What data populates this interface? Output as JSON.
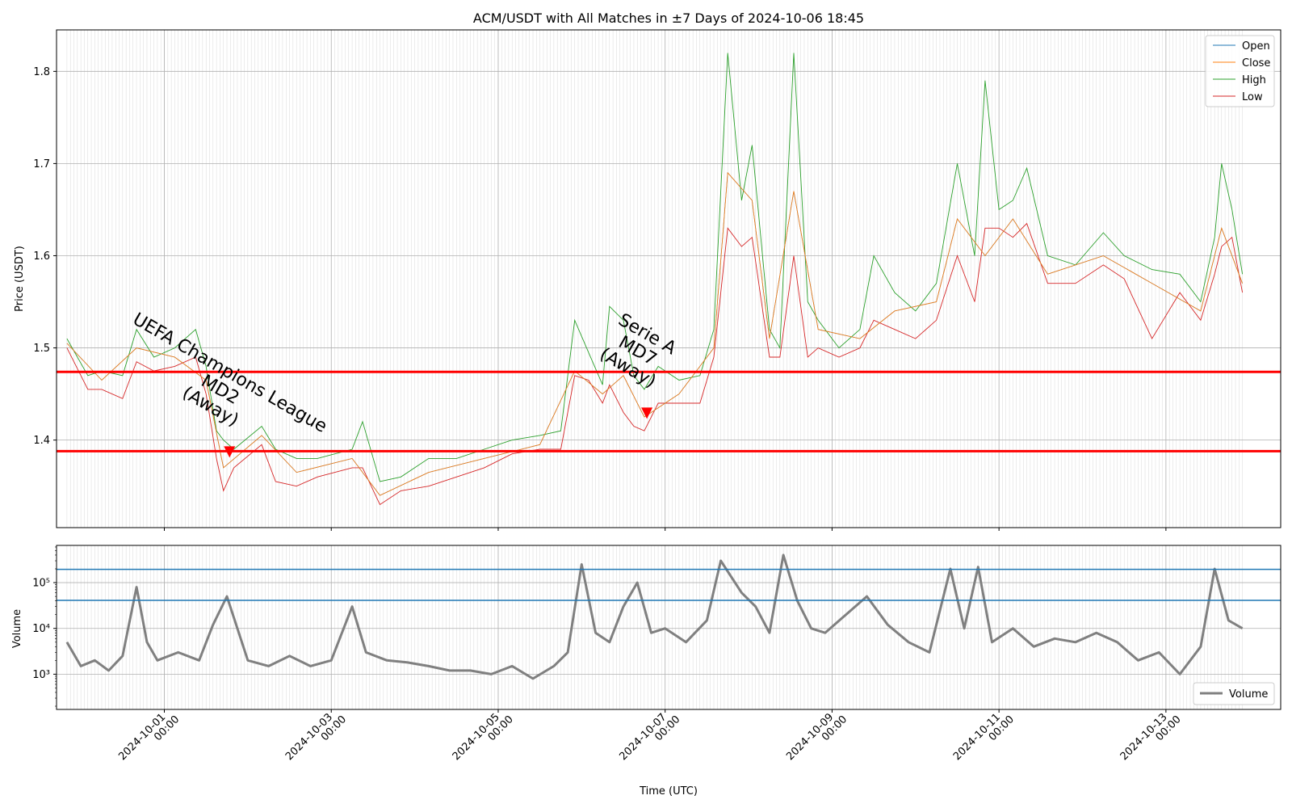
{
  "chart_data": [
    {
      "type": "line",
      "title": "ACM/USDT with All Matches in ±7 Days of 2024-10-06 18:45",
      "ylabel": "Price (USDT)",
      "ylim": [
        1.305,
        1.845
      ],
      "yticks": [
        1.4,
        1.5,
        1.6,
        1.7,
        1.8
      ],
      "ytick_labels": [
        "1.4",
        "1.5",
        "1.6",
        "1.7",
        "1.8"
      ],
      "grid": true,
      "legend": {
        "position": "top-right",
        "entries": [
          "Open",
          "Close",
          "High",
          "Low"
        ]
      },
      "colors": {
        "open": "#1f77b4",
        "close": "#ff7f0e",
        "high": "#2ca02c",
        "low": "#d62728",
        "hline": "#ff0000",
        "marker": "#ff0000"
      },
      "series": [
        {
          "name": "High",
          "x": [
            "2024-09-29 20:00",
            "2024-09-30 02:00",
            "2024-09-30 06:00",
            "2024-09-30 12:00",
            "2024-09-30 16:00",
            "2024-09-30 21:00",
            "2024-10-01 03:00",
            "2024-10-01 09:00",
            "2024-10-01 12:00",
            "2024-10-01 15:00",
            "2024-10-01 17:00",
            "2024-10-01 20:00",
            "2024-10-02 04:00",
            "2024-10-02 08:00",
            "2024-10-02 14:00",
            "2024-10-02 20:00",
            "2024-10-03 06:00",
            "2024-10-03 09:00",
            "2024-10-03 14:00",
            "2024-10-03 20:00",
            "2024-10-04 04:00",
            "2024-10-04 12:00",
            "2024-10-04 20:00",
            "2024-10-05 04:00",
            "2024-10-05 12:00",
            "2024-10-05 18:00",
            "2024-10-05 22:00",
            "2024-10-06 02:00",
            "2024-10-06 06:00",
            "2024-10-06 08:00",
            "2024-10-06 12:00",
            "2024-10-06 15:00",
            "2024-10-06 18:00",
            "2024-10-06 22:00",
            "2024-10-07 04:00",
            "2024-10-07 10:00",
            "2024-10-07 14:00",
            "2024-10-07 18:00",
            "2024-10-07 22:00",
            "2024-10-08 01:00",
            "2024-10-08 06:00",
            "2024-10-08 09:00",
            "2024-10-08 13:00",
            "2024-10-08 17:00",
            "2024-10-08 20:00",
            "2024-10-09 02:00",
            "2024-10-09 08:00",
            "2024-10-09 12:00",
            "2024-10-09 18:00",
            "2024-10-10 00:00",
            "2024-10-10 06:00",
            "2024-10-10 12:00",
            "2024-10-10 17:00",
            "2024-10-10 20:00",
            "2024-10-11 00:00",
            "2024-10-11 04:00",
            "2024-10-11 08:00",
            "2024-10-11 14:00",
            "2024-10-11 22:00",
            "2024-10-12 06:00",
            "2024-10-12 12:00",
            "2024-10-12 20:00",
            "2024-10-13 04:00",
            "2024-10-13 10:00",
            "2024-10-13 14:00",
            "2024-10-13 16:00",
            "2024-10-13 19:00",
            "2024-10-13 22:00"
          ],
          "y": [
            1.51,
            1.47,
            1.475,
            1.47,
            1.52,
            1.49,
            1.5,
            1.52,
            1.48,
            1.41,
            1.4,
            1.39,
            1.415,
            1.39,
            1.38,
            1.38,
            1.39,
            1.42,
            1.355,
            1.36,
            1.38,
            1.38,
            1.39,
            1.4,
            1.405,
            1.41,
            1.53,
            1.495,
            1.46,
            1.545,
            1.53,
            1.47,
            1.455,
            1.48,
            1.465,
            1.47,
            1.52,
            1.82,
            1.66,
            1.72,
            1.52,
            1.5,
            1.82,
            1.55,
            1.53,
            1.5,
            1.52,
            1.6,
            1.56,
            1.54,
            1.57,
            1.7,
            1.6,
            1.79,
            1.65,
            1.66,
            1.695,
            1.6,
            1.59,
            1.625,
            1.6,
            1.585,
            1.58,
            1.55,
            1.62,
            1.7,
            1.65,
            1.58
          ]
        },
        {
          "name": "Low",
          "x": [
            "2024-09-29 20:00",
            "2024-09-30 02:00",
            "2024-09-30 06:00",
            "2024-09-30 12:00",
            "2024-09-30 16:00",
            "2024-09-30 21:00",
            "2024-10-01 03:00",
            "2024-10-01 09:00",
            "2024-10-01 12:00",
            "2024-10-01 15:00",
            "2024-10-01 17:00",
            "2024-10-01 20:00",
            "2024-10-02 04:00",
            "2024-10-02 08:00",
            "2024-10-02 14:00",
            "2024-10-02 20:00",
            "2024-10-03 06:00",
            "2024-10-03 09:00",
            "2024-10-03 14:00",
            "2024-10-03 20:00",
            "2024-10-04 04:00",
            "2024-10-04 12:00",
            "2024-10-04 20:00",
            "2024-10-05 04:00",
            "2024-10-05 12:00",
            "2024-10-05 18:00",
            "2024-10-05 22:00",
            "2024-10-06 02:00",
            "2024-10-06 06:00",
            "2024-10-06 08:00",
            "2024-10-06 12:00",
            "2024-10-06 15:00",
            "2024-10-06 18:00",
            "2024-10-06 22:00",
            "2024-10-07 04:00",
            "2024-10-07 10:00",
            "2024-10-07 14:00",
            "2024-10-07 18:00",
            "2024-10-07 22:00",
            "2024-10-08 01:00",
            "2024-10-08 06:00",
            "2024-10-08 09:00",
            "2024-10-08 13:00",
            "2024-10-08 17:00",
            "2024-10-08 20:00",
            "2024-10-09 02:00",
            "2024-10-09 08:00",
            "2024-10-09 12:00",
            "2024-10-09 18:00",
            "2024-10-10 00:00",
            "2024-10-10 06:00",
            "2024-10-10 12:00",
            "2024-10-10 17:00",
            "2024-10-10 20:00",
            "2024-10-11 00:00",
            "2024-10-11 04:00",
            "2024-10-11 08:00",
            "2024-10-11 14:00",
            "2024-10-11 22:00",
            "2024-10-12 06:00",
            "2024-10-12 12:00",
            "2024-10-12 20:00",
            "2024-10-13 04:00",
            "2024-10-13 10:00",
            "2024-10-13 14:00",
            "2024-10-13 16:00",
            "2024-10-13 19:00",
            "2024-10-13 22:00"
          ],
          "y": [
            1.5,
            1.455,
            1.455,
            1.445,
            1.485,
            1.475,
            1.48,
            1.49,
            1.45,
            1.38,
            1.345,
            1.37,
            1.395,
            1.355,
            1.35,
            1.36,
            1.37,
            1.37,
            1.33,
            1.345,
            1.35,
            1.36,
            1.37,
            1.385,
            1.39,
            1.39,
            1.47,
            1.465,
            1.44,
            1.46,
            1.43,
            1.415,
            1.41,
            1.44,
            1.44,
            1.44,
            1.49,
            1.63,
            1.61,
            1.62,
            1.49,
            1.49,
            1.6,
            1.49,
            1.5,
            1.49,
            1.5,
            1.53,
            1.52,
            1.51,
            1.53,
            1.6,
            1.55,
            1.63,
            1.63,
            1.62,
            1.635,
            1.57,
            1.57,
            1.59,
            1.575,
            1.51,
            1.56,
            1.53,
            1.58,
            1.61,
            1.62,
            1.56
          ]
        },
        {
          "name": "Open",
          "x": [
            "2024-09-29 20:00",
            "2024-09-30 06:00",
            "2024-09-30 16:00",
            "2024-10-01 03:00",
            "2024-10-01 12:00",
            "2024-10-01 17:00",
            "2024-10-02 04:00",
            "2024-10-02 14:00",
            "2024-10-03 06:00",
            "2024-10-03 14:00",
            "2024-10-04 04:00",
            "2024-10-04 20:00",
            "2024-10-05 12:00",
            "2024-10-05 22:00",
            "2024-10-06 06:00",
            "2024-10-06 12:00",
            "2024-10-06 18:00",
            "2024-10-07 04:00",
            "2024-10-07 14:00",
            "2024-10-07 18:00",
            "2024-10-08 01:00",
            "2024-10-08 06:00",
            "2024-10-08 13:00",
            "2024-10-08 20:00",
            "2024-10-09 08:00",
            "2024-10-09 18:00",
            "2024-10-10 06:00",
            "2024-10-10 12:00",
            "2024-10-10 20:00",
            "2024-10-11 04:00",
            "2024-10-11 14:00",
            "2024-10-12 06:00",
            "2024-10-12 20:00",
            "2024-10-13 10:00",
            "2024-10-13 16:00",
            "2024-10-13 22:00"
          ],
          "y": [
            1.505,
            1.465,
            1.5,
            1.49,
            1.465,
            1.37,
            1.405,
            1.365,
            1.38,
            1.34,
            1.365,
            1.38,
            1.395,
            1.475,
            1.45,
            1.47,
            1.425,
            1.45,
            1.5,
            1.69,
            1.66,
            1.51,
            1.67,
            1.52,
            1.51,
            1.54,
            1.55,
            1.64,
            1.6,
            1.64,
            1.58,
            1.6,
            1.57,
            1.54,
            1.63,
            1.57
          ]
        },
        {
          "name": "Close",
          "x": [
            "2024-09-29 20:00",
            "2024-09-30 06:00",
            "2024-09-30 16:00",
            "2024-10-01 03:00",
            "2024-10-01 12:00",
            "2024-10-01 17:00",
            "2024-10-02 04:00",
            "2024-10-02 14:00",
            "2024-10-03 06:00",
            "2024-10-03 14:00",
            "2024-10-04 04:00",
            "2024-10-04 20:00",
            "2024-10-05 12:00",
            "2024-10-05 22:00",
            "2024-10-06 06:00",
            "2024-10-06 12:00",
            "2024-10-06 18:00",
            "2024-10-07 04:00",
            "2024-10-07 14:00",
            "2024-10-07 18:00",
            "2024-10-08 01:00",
            "2024-10-08 06:00",
            "2024-10-08 13:00",
            "2024-10-08 20:00",
            "2024-10-09 08:00",
            "2024-10-09 18:00",
            "2024-10-10 06:00",
            "2024-10-10 12:00",
            "2024-10-10 20:00",
            "2024-10-11 04:00",
            "2024-10-11 14:00",
            "2024-10-12 06:00",
            "2024-10-12 20:00",
            "2024-10-13 10:00",
            "2024-10-13 16:00",
            "2024-10-13 22:00"
          ],
          "y": [
            1.505,
            1.465,
            1.5,
            1.49,
            1.465,
            1.37,
            1.405,
            1.365,
            1.38,
            1.34,
            1.365,
            1.38,
            1.395,
            1.475,
            1.45,
            1.47,
            1.425,
            1.45,
            1.5,
            1.69,
            1.66,
            1.51,
            1.67,
            1.52,
            1.51,
            1.54,
            1.55,
            1.64,
            1.6,
            1.64,
            1.58,
            1.6,
            1.57,
            1.54,
            1.63,
            1.57
          ]
        }
      ],
      "hlines": [
        1.474,
        1.388
      ],
      "annotations": [
        {
          "text": [
            "UEFA Champions League",
            "MD2",
            "(Away)"
          ],
          "x": "2024-10-01 18:45",
          "y": 1.388
        },
        {
          "text": [
            "Serie A",
            "MD7",
            "(Away)"
          ],
          "x": "2024-10-06 18:45",
          "y": 1.43
        }
      ]
    },
    {
      "type": "line",
      "xlabel": "Time (UTC)",
      "ylabel": "Volume",
      "yscale": "log",
      "ylim": [
        170,
        650000
      ],
      "yticks": [
        1000,
        10000,
        100000
      ],
      "ytick_labels": [
        "10³",
        "10⁴",
        "10⁵"
      ],
      "xlim": [
        "2024-09-29 17:00",
        "2024-10-14 09:00"
      ],
      "xticks": [
        "2024-10-01 00:00",
        "2024-10-03 00:00",
        "2024-10-05 00:00",
        "2024-10-07 00:00",
        "2024-10-09 00:00",
        "2024-10-11 00:00",
        "2024-10-13 00:00"
      ],
      "xtick_labels": [
        [
          "2024-10-01",
          "00:00"
        ],
        [
          "2024-10-03",
          "00:00"
        ],
        [
          "2024-10-05",
          "00:00"
        ],
        [
          "2024-10-07",
          "00:00"
        ],
        [
          "2024-10-09",
          "00:00"
        ],
        [
          "2024-10-11",
          "00:00"
        ],
        [
          "2024-10-13",
          "00:00"
        ]
      ],
      "grid": true,
      "legend": {
        "position": "bottom-right",
        "entries": [
          "Volume"
        ]
      },
      "colors": {
        "volume": "#808080",
        "hline": "#1f77b4"
      },
      "series": [
        {
          "name": "Volume",
          "x": [
            "2024-09-29 20:00",
            "2024-09-30 00:00",
            "2024-09-30 04:00",
            "2024-09-30 08:00",
            "2024-09-30 12:00",
            "2024-09-30 16:00",
            "2024-09-30 19:00",
            "2024-09-30 22:00",
            "2024-10-01 04:00",
            "2024-10-01 10:00",
            "2024-10-01 14:00",
            "2024-10-01 18:00",
            "2024-10-02 00:00",
            "2024-10-02 06:00",
            "2024-10-02 12:00",
            "2024-10-02 18:00",
            "2024-10-03 00:00",
            "2024-10-03 06:00",
            "2024-10-03 10:00",
            "2024-10-03 16:00",
            "2024-10-03 22:00",
            "2024-10-04 04:00",
            "2024-10-04 10:00",
            "2024-10-04 16:00",
            "2024-10-04 22:00",
            "2024-10-05 04:00",
            "2024-10-05 10:00",
            "2024-10-05 16:00",
            "2024-10-05 20:00",
            "2024-10-06 00:00",
            "2024-10-06 04:00",
            "2024-10-06 08:00",
            "2024-10-06 12:00",
            "2024-10-06 16:00",
            "2024-10-06 20:00",
            "2024-10-07 00:00",
            "2024-10-07 06:00",
            "2024-10-07 12:00",
            "2024-10-07 16:00",
            "2024-10-07 22:00",
            "2024-10-08 02:00",
            "2024-10-08 06:00",
            "2024-10-08 10:00",
            "2024-10-08 14:00",
            "2024-10-08 18:00",
            "2024-10-08 22:00",
            "2024-10-09 04:00",
            "2024-10-09 10:00",
            "2024-10-09 16:00",
            "2024-10-09 22:00",
            "2024-10-10 04:00",
            "2024-10-10 10:00",
            "2024-10-10 14:00",
            "2024-10-10 18:00",
            "2024-10-10 22:00",
            "2024-10-11 04:00",
            "2024-10-11 10:00",
            "2024-10-11 16:00",
            "2024-10-11 22:00",
            "2024-10-12 04:00",
            "2024-10-12 10:00",
            "2024-10-12 16:00",
            "2024-10-12 22:00",
            "2024-10-13 04:00",
            "2024-10-13 10:00",
            "2024-10-13 14:00",
            "2024-10-13 18:00",
            "2024-10-13 22:00"
          ],
          "y": [
            5000,
            1500,
            2000,
            1200,
            2500,
            80000,
            5000,
            2000,
            3000,
            2000,
            12000,
            50000,
            2000,
            1500,
            2500,
            1500,
            2000,
            30000,
            3000,
            2000,
            1800,
            1500,
            1200,
            1200,
            1000,
            1500,
            800,
            1500,
            3000,
            250000,
            8000,
            5000,
            30000,
            100000,
            8000,
            10000,
            5000,
            15000,
            300000,
            60000,
            30000,
            8000,
            400000,
            40000,
            10000,
            8000,
            20000,
            50000,
            12000,
            5000,
            3000,
            200000,
            10000,
            220000,
            5000,
            10000,
            4000,
            6000,
            5000,
            8000,
            5000,
            2000,
            3000,
            1000,
            4000,
            200000,
            15000,
            10000
          ]
        }
      ],
      "hlines": [
        195000,
        41000
      ]
    }
  ]
}
